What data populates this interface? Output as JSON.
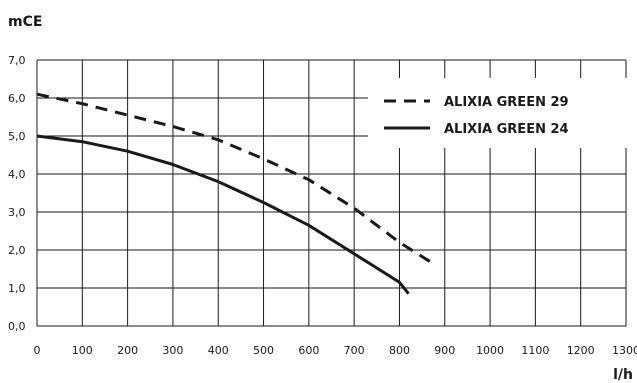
{
  "chart_data": {
    "type": "line",
    "xlabel": "l/h",
    "ylabel": "mCE",
    "xlim": [
      0,
      1300
    ],
    "ylim": [
      0,
      7
    ],
    "x_ticks": [
      "0",
      "100",
      "200",
      "300",
      "400",
      "500",
      "600",
      "700",
      "800",
      "900",
      "1000",
      "1100",
      "1200",
      "1300"
    ],
    "y_ticks": [
      "0,0",
      "1,0",
      "2,0",
      "3,0",
      "4,0",
      "5,0",
      "6,0",
      "7,0"
    ],
    "grid": true,
    "legend_position": "top-right",
    "series": [
      {
        "name": "ALIXIA GREEN 29",
        "style": "dashed",
        "color": "#1a1a1a",
        "points": [
          [
            0,
            6.1
          ],
          [
            100,
            5.85
          ],
          [
            200,
            5.55
          ],
          [
            300,
            5.25
          ],
          [
            400,
            4.9
          ],
          [
            500,
            4.4
          ],
          [
            600,
            3.85
          ],
          [
            700,
            3.1
          ],
          [
            800,
            2.2
          ],
          [
            880,
            1.6
          ]
        ]
      },
      {
        "name": "ALIXIA GREEN 24",
        "style": "solid",
        "color": "#1a1a1a",
        "points": [
          [
            0,
            5.0
          ],
          [
            100,
            4.85
          ],
          [
            200,
            4.6
          ],
          [
            300,
            4.25
          ],
          [
            400,
            3.8
          ],
          [
            500,
            3.25
          ],
          [
            600,
            2.65
          ],
          [
            700,
            1.9
          ],
          [
            800,
            1.15
          ],
          [
            820,
            0.85
          ]
        ]
      }
    ]
  }
}
